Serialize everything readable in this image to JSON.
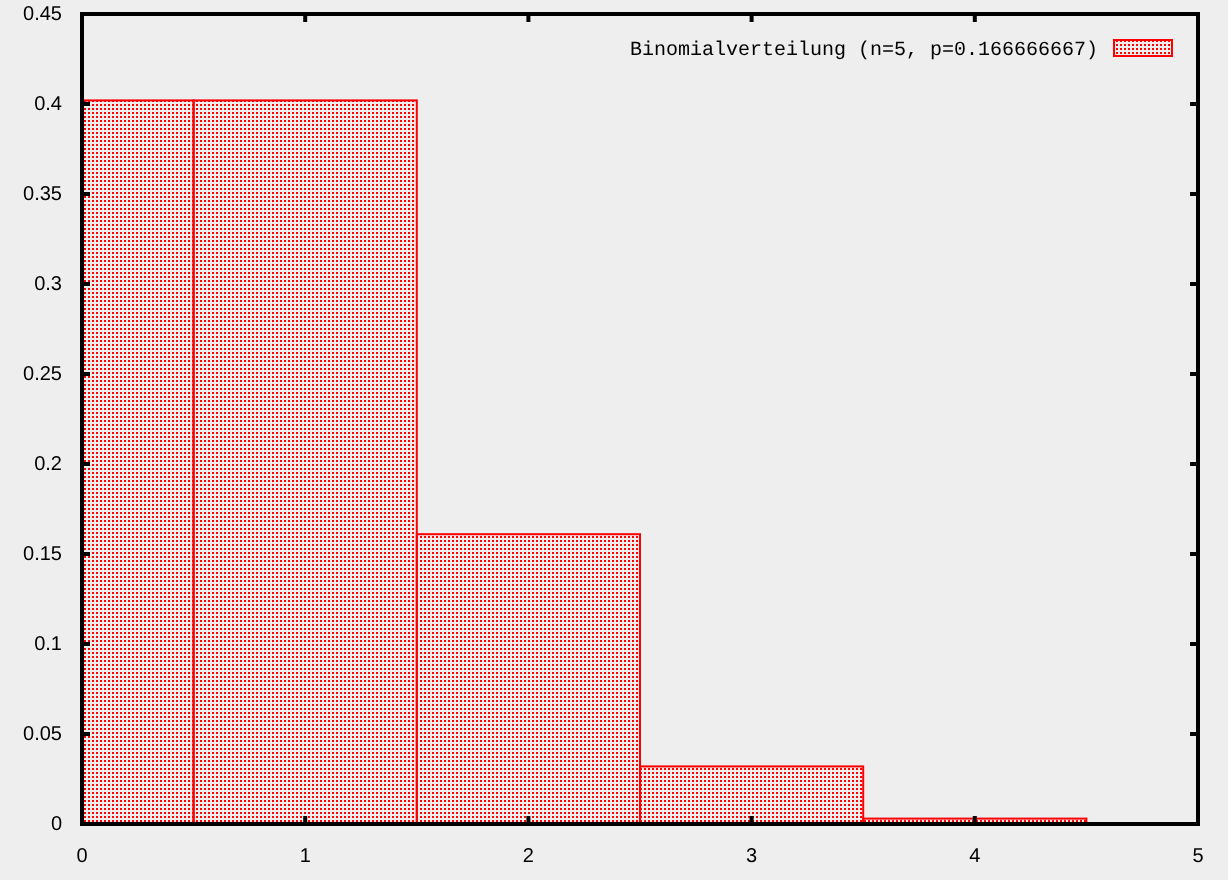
{
  "chart_data": {
    "type": "histogram",
    "bins": [
      0,
      0.5,
      1.5,
      2.5,
      3.5,
      4.5
    ],
    "series": [
      {
        "name": "Binomialverteilung (n=5, p=0.166666667)",
        "color": "#ff0000",
        "values": [
          0.402,
          0.402,
          0.161,
          0.032,
          0.003
        ]
      }
    ],
    "xlim": [
      0,
      5
    ],
    "ylim": [
      0,
      0.45
    ],
    "xticks": [
      0,
      1,
      2,
      3,
      4,
      5
    ],
    "yticks": [
      0,
      0.05,
      0.1,
      0.15,
      0.2,
      0.25,
      0.3,
      0.35,
      0.4,
      0.45
    ],
    "legend": "top right"
  }
}
